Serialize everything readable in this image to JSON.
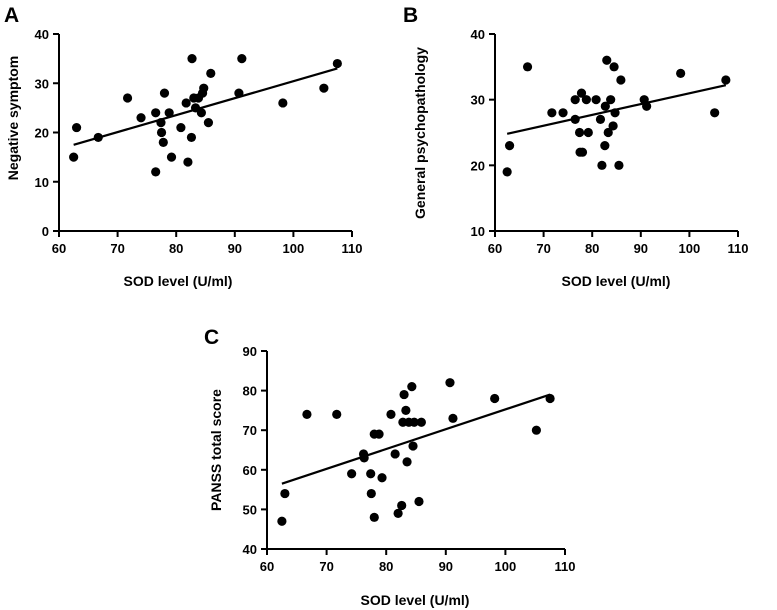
{
  "chart_data": [
    {
      "type": "scatter",
      "panel": "A",
      "title": "",
      "xlabel": "SOD level (U/ml)",
      "ylabel": "Negative symptom",
      "xlim": [
        60,
        110
      ],
      "ylim": [
        0,
        40
      ],
      "xticks": [
        60,
        70,
        80,
        90,
        100,
        110
      ],
      "yticks": [
        0,
        10,
        20,
        30,
        40
      ],
      "fit_line": [
        [
          62.5,
          17.5
        ],
        [
          107.5,
          33
        ]
      ],
      "points": [
        [
          62.5,
          15
        ],
        [
          63,
          21
        ],
        [
          66.7,
          19
        ],
        [
          71.7,
          27
        ],
        [
          74,
          23
        ],
        [
          76.5,
          24
        ],
        [
          76.5,
          12
        ],
        [
          77.4,
          22
        ],
        [
          77.5,
          20
        ],
        [
          77.8,
          18
        ],
        [
          78,
          28
        ],
        [
          78.8,
          24
        ],
        [
          79.2,
          15
        ],
        [
          80.8,
          21
        ],
        [
          81.7,
          26
        ],
        [
          82,
          14
        ],
        [
          82.7,
          35
        ],
        [
          82.6,
          19
        ],
        [
          83,
          27
        ],
        [
          83.3,
          25
        ],
        [
          83.8,
          27
        ],
        [
          84.5,
          28
        ],
        [
          84.3,
          24
        ],
        [
          84.7,
          29
        ],
        [
          85.5,
          22
        ],
        [
          85.9,
          32
        ],
        [
          90.7,
          28
        ],
        [
          91.2,
          35
        ],
        [
          98.2,
          26
        ],
        [
          105.2,
          29
        ],
        [
          107.5,
          34
        ]
      ]
    },
    {
      "type": "scatter",
      "panel": "B",
      "title": "",
      "xlabel": "SOD level (U/ml)",
      "ylabel": "General psychopathology",
      "xlim": [
        60,
        110
      ],
      "ylim": [
        10,
        40
      ],
      "xticks": [
        60,
        70,
        80,
        90,
        100,
        110
      ],
      "yticks": [
        10,
        20,
        30,
        40
      ],
      "fit_line": [
        [
          62.5,
          24.8
        ],
        [
          107.5,
          32.2
        ]
      ],
      "points": [
        [
          62.5,
          19
        ],
        [
          63,
          23
        ],
        [
          66.7,
          35
        ],
        [
          71.7,
          28
        ],
        [
          74,
          28
        ],
        [
          76.5,
          30
        ],
        [
          76.5,
          27
        ],
        [
          77.4,
          25
        ],
        [
          77.5,
          22
        ],
        [
          77.8,
          31
        ],
        [
          78,
          22
        ],
        [
          78.8,
          30
        ],
        [
          79.2,
          25
        ],
        [
          80.8,
          30
        ],
        [
          81.7,
          27
        ],
        [
          82,
          20
        ],
        [
          82.6,
          23
        ],
        [
          82.7,
          29
        ],
        [
          83,
          36
        ],
        [
          83.3,
          25
        ],
        [
          83.8,
          30
        ],
        [
          84.3,
          26
        ],
        [
          84.5,
          35
        ],
        [
          84.7,
          28
        ],
        [
          85.5,
          20
        ],
        [
          85.9,
          33
        ],
        [
          90.7,
          30
        ],
        [
          91.2,
          29
        ],
        [
          98.2,
          34
        ],
        [
          105.2,
          28
        ],
        [
          107.5,
          33
        ]
      ]
    },
    {
      "type": "scatter",
      "panel": "C",
      "title": "",
      "xlabel": "SOD level (U/ml)",
      "ylabel": "PANSS total score",
      "xlim": [
        60,
        110
      ],
      "ylim": [
        40,
        90
      ],
      "xticks": [
        60,
        70,
        80,
        90,
        100,
        110
      ],
      "yticks": [
        40,
        50,
        60,
        70,
        80,
        90
      ],
      "fit_line": [
        [
          62.5,
          56.5
        ],
        [
          107.5,
          79
        ]
      ],
      "points": [
        [
          62.5,
          47
        ],
        [
          63,
          54
        ],
        [
          66.7,
          74
        ],
        [
          71.7,
          74
        ],
        [
          74.2,
          59
        ],
        [
          76.2,
          64
        ],
        [
          76.3,
          63
        ],
        [
          77.4,
          59
        ],
        [
          77.5,
          54
        ],
        [
          78,
          48
        ],
        [
          78,
          69
        ],
        [
          78.8,
          69
        ],
        [
          79.3,
          58
        ],
        [
          80.8,
          74
        ],
        [
          81.5,
          64
        ],
        [
          82,
          49
        ],
        [
          82.6,
          51
        ],
        [
          82.8,
          72
        ],
        [
          83,
          79
        ],
        [
          83.3,
          75
        ],
        [
          83.5,
          62
        ],
        [
          83.8,
          72
        ],
        [
          84.3,
          81
        ],
        [
          84.5,
          66
        ],
        [
          84.7,
          72
        ],
        [
          85.5,
          52
        ],
        [
          85.9,
          72
        ],
        [
          90.7,
          82
        ],
        [
          91.2,
          73
        ],
        [
          98.2,
          78
        ],
        [
          105.2,
          70
        ],
        [
          107.5,
          78
        ]
      ]
    }
  ]
}
